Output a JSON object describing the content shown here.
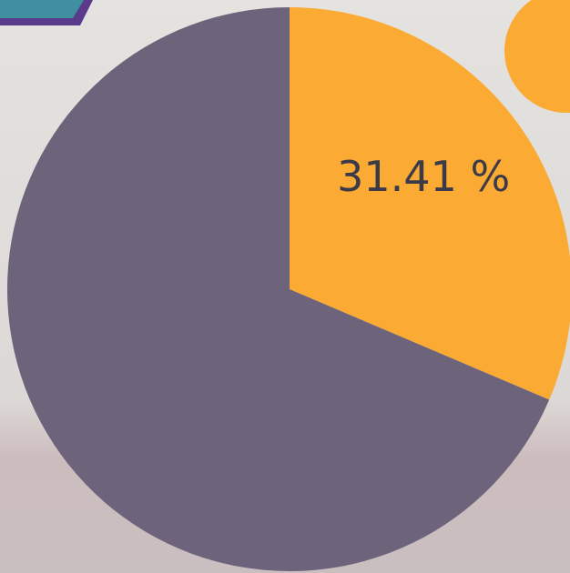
{
  "chart_data": {
    "type": "pie",
    "categories": [
      null,
      null
    ],
    "values": [
      31.41,
      68.59
    ],
    "value_labels": [
      "31.41 %",
      null
    ],
    "colors": [
      "#fbab33",
      "#6d647c"
    ]
  }
}
